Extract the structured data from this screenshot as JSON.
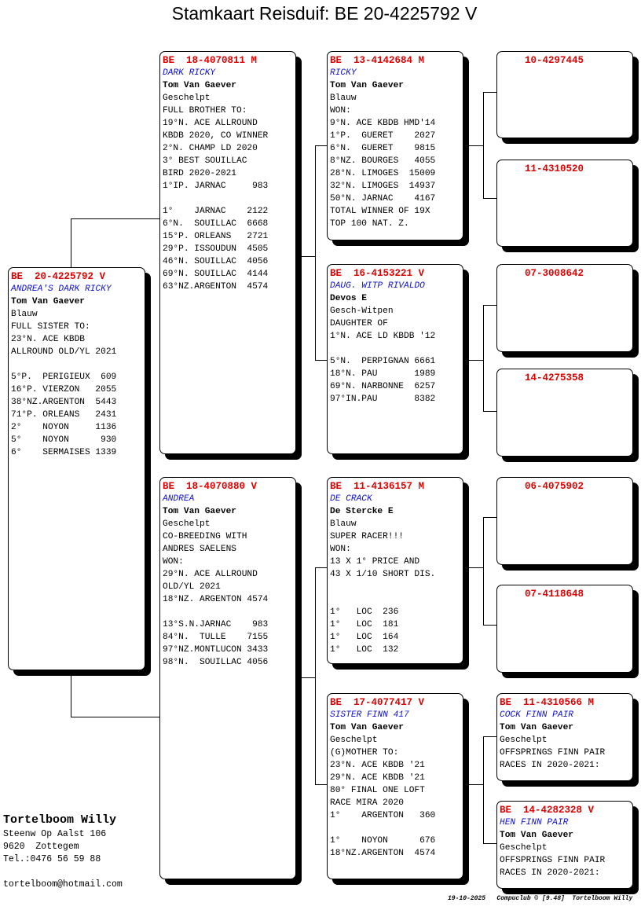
{
  "title": "Stamkaart Reisduif: BE  20-4225792 V",
  "boxes": {
    "subject": {
      "ring": "BE  20-4225792 V",
      "name": "ANDREA'S DARK RICKY",
      "owner": "Tom Van Gaever",
      "lines": [
        "Blauw",
        "FULL SISTER TO:",
        "23°N. ACE KBDB",
        "ALLROUND OLD/YL 2021",
        "",
        "5°P.  PERIGIEUX  609",
        "16°P. VIERZON   2055",
        "38°NZ.ARGENTON  5443",
        "71°P. ORLEANS   2431",
        "2°    NOYON     1136",
        "5°    NOYON      930",
        "6°    SERMAISES 1339"
      ]
    },
    "sire": {
      "ring": "BE  18-4070811 M",
      "name": "DARK RICKY",
      "owner": "Tom Van Gaever",
      "lines": [
        "Geschelpt",
        "FULL BROTHER TO:",
        "19°N. ACE ALLROUND",
        "KBDB 2020, CO WINNER",
        "2°N. CHAMP LD 2020",
        "3° BEST SOUILLAC",
        "BIRD 2020-2021",
        "1°IP. JARNAC     983",
        "",
        "1°    JARNAC    2122",
        "6°N.  SOUILLAC  6668",
        "15°P. ORLEANS   2721",
        "29°P. ISSOUDUN  4505",
        "46°N. SOUILLAC  4056",
        "69°N. SOUILLAC  4144",
        "63°NZ.ARGENTON  4574"
      ]
    },
    "dam": {
      "ring": "BE  18-4070880 V",
      "name": "ANDREA",
      "owner": "Tom Van Gaever",
      "lines": [
        "Geschelpt",
        "CO-BREEDING WITH",
        "ANDRES SAELENS",
        "WON:",
        "29°N. ACE ALLROUND",
        "OLD/YL 2021",
        "18°NZ. ARGENTON 4574",
        "",
        "13°S.N.JARNAC    983",
        "84°N.  TULLE    7155",
        "97°NZ.MONTLUCON 3433",
        "98°N.  SOUILLAC 4056"
      ]
    },
    "ss": {
      "ring": "BE  13-4142684 M",
      "name": "RICKY",
      "owner": "Tom Van Gaever",
      "lines": [
        "Blauw",
        "WON:",
        "9°N. ACE KBDB HMD'14",
        "1°P.  GUERET    2027",
        "6°N.  GUERET    9815",
        "8°NZ. BOURGES   4055",
        "28°N. LIMOGES  15009",
        "32°N. LIMOGES  14937",
        "50°N. JARNAC    4167",
        "TOTAL WINNER OF 19X",
        "TOP 100 NAT. Z."
      ]
    },
    "sd": {
      "ring": "BE  16-4153221 V",
      "name": "DAUG. WITP RIVALDO",
      "owner": "Devos E",
      "lines": [
        "Gesch-Witpen",
        "DAUGHTER OF",
        "1°N. ACE LD KBDB '12",
        "",
        "5°N.  PERPIGNAN 6661",
        "18°N. PAU       1989",
        "69°N. NARBONNE  6257",
        "97°IN.PAU       8382"
      ]
    },
    "ds": {
      "ring": "BE  11-4136157 M",
      "name": "DE CRACK",
      "owner": "De Stercke E",
      "lines": [
        "Blauw",
        "SUPER RACER!!!",
        "WON:",
        "13 X 1° PRICE AND",
        "43 X 1/10 SHORT DIS.",
        "",
        "",
        "1°   LOC  236",
        "1°   LOC  181",
        "1°   LOC  164",
        "1°   LOC  132"
      ]
    },
    "dd": {
      "ring": "BE  17-4077417 V",
      "name": "SISTER FINN 417",
      "owner": "Tom Van Gaever",
      "lines": [
        "Geschelpt",
        "(G)MOTHER TO:",
        "23°N. ACE KBDB '21",
        "29°N. ACE KBDB '21",
        "80° FINAL ONE LOFT",
        "RACE MIRA 2020",
        "1°    ARGENTON   360",
        "",
        "1°    NOYON      676",
        "18°NZ.ARGENTON  4574"
      ]
    },
    "sss": {
      "ring": "10-4297445"
    },
    "ssd": {
      "ring": "11-4310520"
    },
    "sds": {
      "ring": "07-3008642"
    },
    "sdd": {
      "ring": "14-4275358"
    },
    "dss": {
      "ring": "06-4075902"
    },
    "dsd": {
      "ring": "07-4118648"
    },
    "dds": {
      "ring": "BE  11-4310566 M",
      "name": "COCK FINN PAIR",
      "owner": "Tom Van Gaever",
      "lines": [
        "Geschelpt",
        "OFFSPRINGS FINN PAIR",
        "RACES IN 2020-2021:"
      ]
    },
    "ddd": {
      "ring": "BE  14-4282328 V",
      "name": "HEN FINN PAIR",
      "owner": "Tom Van Gaever",
      "lines": [
        "Geschelpt",
        "OFFSPRINGS FINN PAIR",
        "RACES IN 2020-2021:"
      ]
    }
  },
  "breeder": {
    "name": "Tortelboom Willy",
    "address": "Steenw Op Aalst 106",
    "city": "9620  Zottegem",
    "phone": "Tel.:0476 56 59 88",
    "email": "tortelboom@hotmail.com"
  },
  "footer": "19-10-2025   Compuclub © [9.48]  Tortelboom Willy",
  "colors": {
    "ring": "#e00000",
    "name": "#1010d0"
  }
}
